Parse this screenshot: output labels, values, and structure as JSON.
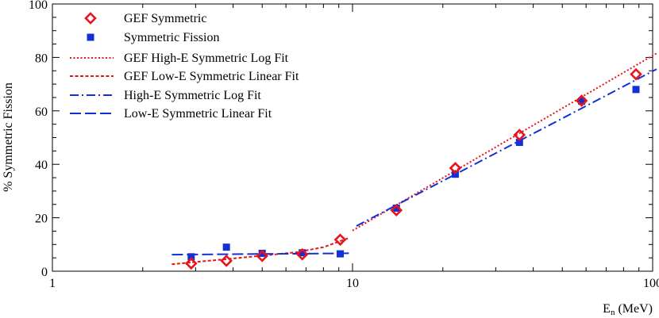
{
  "chart_data": {
    "type": "scatter",
    "title": "",
    "xlabel": "E",
    "xlabel_sub": "n",
    "xlabel_units": " (MeV)",
    "ylabel": "% Symmetric Fission",
    "xscale": "log",
    "xlim": [
      1,
      100
    ],
    "ylim": [
      0,
      100
    ],
    "x_ticks": [
      1,
      10,
      100
    ],
    "x_tick_labels": [
      "1",
      "10",
      "100"
    ],
    "y_ticks": [
      0,
      20,
      40,
      60,
      80,
      100
    ],
    "y_tick_labels": [
      "0",
      "20",
      "40",
      "60",
      "80",
      "100"
    ],
    "grid": false,
    "legend_position": "top-left",
    "series": [
      {
        "name": "GEF Symmetric",
        "kind": "points",
        "marker": "diamond-open",
        "color": "#e8141b",
        "points": [
          [
            2.9,
            2.9
          ],
          [
            3.8,
            3.9
          ],
          [
            5.0,
            5.7
          ],
          [
            6.8,
            6.3
          ],
          [
            9.1,
            11.8
          ],
          [
            14.0,
            22.8
          ],
          [
            22.0,
            38.6
          ],
          [
            36.0,
            51.0
          ],
          [
            58.0,
            63.8
          ],
          [
            88.0,
            73.7
          ]
        ]
      },
      {
        "name": "Symmetric Fission",
        "kind": "points",
        "marker": "square",
        "color": "#1330d6",
        "points": [
          [
            2.9,
            5.4
          ],
          [
            3.8,
            9.0
          ],
          [
            5.0,
            6.7
          ],
          [
            6.8,
            6.9
          ],
          [
            9.1,
            6.5
          ],
          [
            14.0,
            23.6
          ],
          [
            22.0,
            36.3
          ],
          [
            36.0,
            48.2
          ],
          [
            58.0,
            63.6
          ],
          [
            88.0,
            68.0
          ]
        ]
      },
      {
        "name": "GEF High-E Symmetric Log Fit",
        "kind": "line",
        "style": "dotted",
        "color": "#e8141b",
        "points": [
          [
            10,
            15.2
          ],
          [
            103,
            81.5
          ]
        ]
      },
      {
        "name": "GEF Low-E Symmetric Linear Fit",
        "kind": "line",
        "style": "dashed",
        "color": "#e8141b",
        "points": [
          [
            2.5,
            2.6
          ],
          [
            4.5,
            5.3
          ],
          [
            6.5,
            7.1
          ],
          [
            8.0,
            9.0
          ],
          [
            9.7,
            12.4
          ]
        ]
      },
      {
        "name": "High-E Symmetric Log Fit",
        "kind": "line",
        "style": "dashdot",
        "color": "#1330d6",
        "points": [
          [
            10.3,
            16.9
          ],
          [
            103,
            75.6
          ]
        ]
      },
      {
        "name": "Low-E Symmetric Linear Fit",
        "kind": "line",
        "style": "longdash",
        "color": "#1330d6",
        "points": [
          [
            2.5,
            6.2
          ],
          [
            10,
            6.7
          ]
        ]
      }
    ]
  }
}
